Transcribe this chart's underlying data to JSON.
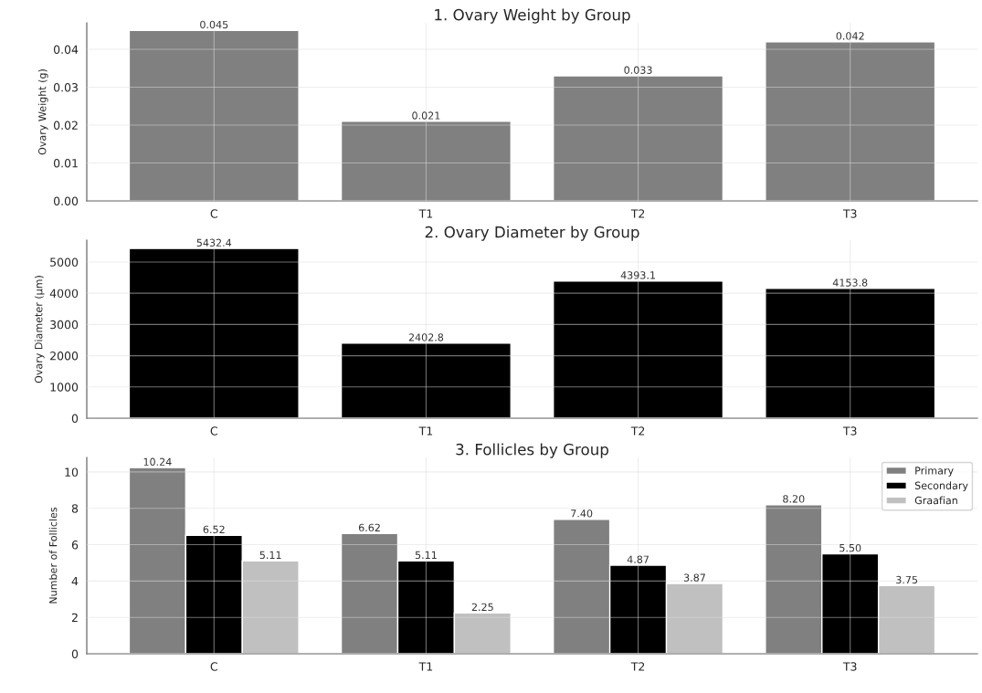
{
  "chart_data": [
    {
      "type": "bar",
      "title": "1. Ovary Weight by Group",
      "ylabel": "Ovary Weight (g)",
      "categories": [
        "C",
        "T1",
        "T2",
        "T3"
      ],
      "values": [
        0.045,
        0.021,
        0.033,
        0.042
      ],
      "color": "#808080",
      "ylim": [
        0,
        0.047
      ],
      "yticks": [
        "0.00",
        "0.01",
        "0.02",
        "0.03",
        "0.04"
      ],
      "data_labels": true,
      "grid": true
    },
    {
      "type": "bar",
      "title": "2. Ovary Diameter by Group",
      "ylabel": "Ovary Diameter (μm)",
      "categories": [
        "C",
        "T1",
        "T2",
        "T3"
      ],
      "values": [
        5432.4,
        2402.8,
        4393.1,
        4153.8
      ],
      "color": "#000000",
      "ylim": [
        0,
        5700
      ],
      "yticks": [
        0,
        1000,
        2000,
        3000,
        4000,
        5000
      ],
      "data_labels": true,
      "grid": true
    },
    {
      "type": "bar",
      "title": "3. Follicles by Group",
      "ylabel": "Number of Follicles",
      "categories": [
        "C",
        "T1",
        "T2",
        "T3"
      ],
      "ylim": [
        0,
        10.8
      ],
      "yticks": [
        0,
        2,
        4,
        6,
        8,
        10
      ],
      "grid": true,
      "legend": "top right",
      "series": [
        {
          "name": "Primary",
          "color": "#808080",
          "values": [
            10.24,
            6.62,
            7.4,
            8.2
          ],
          "value_labels": [
            "10.24",
            "6.62",
            "7.40",
            "8.20"
          ]
        },
        {
          "name": "Secondary",
          "color": "#000000",
          "values": [
            6.52,
            5.11,
            4.87,
            5.5
          ],
          "value_labels": [
            "6.52",
            "5.11",
            "4.87",
            "5.50"
          ]
        },
        {
          "name": "Graafian",
          "color": "#c0c0c0",
          "values": [
            5.11,
            2.25,
            3.87,
            3.75
          ],
          "value_labels": [
            "5.11",
            "2.25",
            "3.87",
            "3.75"
          ]
        }
      ]
    }
  ]
}
